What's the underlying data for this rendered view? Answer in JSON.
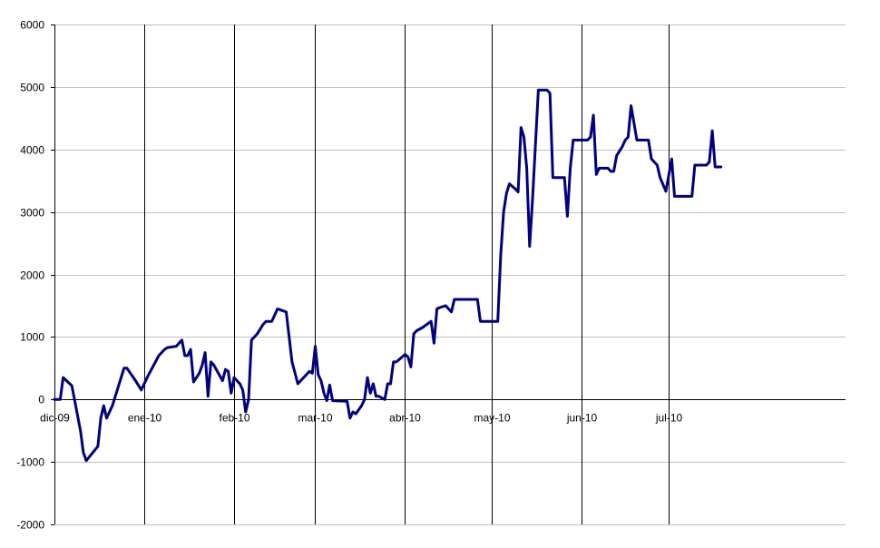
{
  "chart_data": {
    "type": "line",
    "title": "",
    "xlabel": "",
    "ylabel": "",
    "ylim": [
      -2000,
      6000
    ],
    "yticks": [
      -2000,
      -1000,
      0,
      1000,
      2000,
      3000,
      4000,
      5000,
      6000
    ],
    "ytick_labels": [
      "-2000",
      "-1000",
      "0",
      "1000",
      "2000",
      "3000",
      "4000",
      "5000",
      "6000"
    ],
    "x_type": "date",
    "xlim": [
      "2009-12-01",
      "2010-08-31"
    ],
    "xticks": [
      "2009-12-01",
      "2010-01-01",
      "2010-02-01",
      "2010-03-01",
      "2010-04-01",
      "2010-05-01",
      "2010-06-01",
      "2010-07-01"
    ],
    "xtick_labels": [
      "dic-09",
      "ene-10",
      "feb-10",
      "mar-10",
      "abr-10",
      "may-10",
      "jun-10",
      "jul-10"
    ],
    "grid": {
      "horizontal": true,
      "vertical": true
    },
    "colors": {
      "series": "#000080",
      "hgrid": "#c0c0c0",
      "vgrid": "#000000",
      "axis": "#000000"
    },
    "series": [
      {
        "color": "#000080",
        "points": [
          [
            "2009-12-01",
            0
          ],
          [
            "2009-12-03",
            0
          ],
          [
            "2009-12-04",
            350
          ],
          [
            "2009-12-07",
            220
          ],
          [
            "2009-12-10",
            -500
          ],
          [
            "2009-12-11",
            -850
          ],
          [
            "2009-12-12",
            -980
          ],
          [
            "2009-12-16",
            -750
          ],
          [
            "2009-12-17",
            -300
          ],
          [
            "2009-12-18",
            -100
          ],
          [
            "2009-12-19",
            -300
          ],
          [
            "2009-12-21",
            -100
          ],
          [
            "2009-12-23",
            200
          ],
          [
            "2009-12-25",
            500
          ],
          [
            "2009-12-26",
            500
          ],
          [
            "2009-12-29",
            300
          ],
          [
            "2009-12-31",
            150
          ],
          [
            "2010-01-02",
            350
          ],
          [
            "2010-01-06",
            700
          ],
          [
            "2010-01-08",
            800
          ],
          [
            "2010-01-09",
            830
          ],
          [
            "2010-01-12",
            850
          ],
          [
            "2010-01-14",
            950
          ],
          [
            "2010-01-15",
            700
          ],
          [
            "2010-01-16",
            700
          ],
          [
            "2010-01-17",
            800
          ],
          [
            "2010-01-18",
            280
          ],
          [
            "2010-01-20",
            420
          ],
          [
            "2010-01-21",
            550
          ],
          [
            "2010-01-22",
            750
          ],
          [
            "2010-01-23",
            50
          ],
          [
            "2010-01-24",
            600
          ],
          [
            "2010-01-25",
            550
          ],
          [
            "2010-01-28",
            300
          ],
          [
            "2010-01-29",
            480
          ],
          [
            "2010-01-30",
            450
          ],
          [
            "2010-01-31",
            100
          ],
          [
            "2010-02-01",
            350
          ],
          [
            "2010-02-03",
            250
          ],
          [
            "2010-02-04",
            150
          ],
          [
            "2010-02-05",
            -200
          ],
          [
            "2010-02-06",
            0
          ],
          [
            "2010-02-07",
            950
          ],
          [
            "2010-02-08",
            1000
          ],
          [
            "2010-02-09",
            1050
          ],
          [
            "2010-02-11",
            1200
          ],
          [
            "2010-02-12",
            1250
          ],
          [
            "2010-02-14",
            1250
          ],
          [
            "2010-02-16",
            1450
          ],
          [
            "2010-02-19",
            1400
          ],
          [
            "2010-02-21",
            600
          ],
          [
            "2010-02-23",
            250
          ],
          [
            "2010-02-25",
            350
          ],
          [
            "2010-02-27",
            450
          ],
          [
            "2010-02-28",
            420
          ],
          [
            "2010-03-01",
            850
          ],
          [
            "2010-03-02",
            400
          ],
          [
            "2010-03-03",
            300
          ],
          [
            "2010-03-04",
            100
          ],
          [
            "2010-03-05",
            -20
          ],
          [
            "2010-03-06",
            230
          ],
          [
            "2010-03-07",
            -20
          ],
          [
            "2010-03-12",
            -30
          ],
          [
            "2010-03-13",
            -300
          ],
          [
            "2010-03-14",
            -200
          ],
          [
            "2010-03-15",
            -230
          ],
          [
            "2010-03-17",
            -100
          ],
          [
            "2010-03-18",
            0
          ],
          [
            "2010-03-19",
            350
          ],
          [
            "2010-03-20",
            100
          ],
          [
            "2010-03-21",
            250
          ],
          [
            "2010-03-22",
            50
          ],
          [
            "2010-03-23",
            50
          ],
          [
            "2010-03-25",
            0
          ],
          [
            "2010-03-26",
            250
          ],
          [
            "2010-03-27",
            250
          ],
          [
            "2010-03-28",
            600
          ],
          [
            "2010-03-29",
            600
          ],
          [
            "2010-04-01",
            720
          ],
          [
            "2010-04-02",
            680
          ],
          [
            "2010-04-03",
            520
          ],
          [
            "2010-04-04",
            1050
          ],
          [
            "2010-04-05",
            1100
          ],
          [
            "2010-04-07",
            1150
          ],
          [
            "2010-04-10",
            1250
          ],
          [
            "2010-04-11",
            900
          ],
          [
            "2010-04-12",
            1450
          ],
          [
            "2010-04-13",
            1470
          ],
          [
            "2010-04-15",
            1500
          ],
          [
            "2010-04-17",
            1400
          ],
          [
            "2010-04-18",
            1600
          ],
          [
            "2010-04-26",
            1600
          ],
          [
            "2010-04-27",
            1250
          ],
          [
            "2010-05-03",
            1250
          ],
          [
            "2010-05-04",
            2300
          ],
          [
            "2010-05-05",
            3000
          ],
          [
            "2010-05-06",
            3300
          ],
          [
            "2010-05-07",
            3450
          ],
          [
            "2010-05-09",
            3370
          ],
          [
            "2010-05-10",
            3320
          ],
          [
            "2010-05-11",
            4350
          ],
          [
            "2010-05-12",
            4200
          ],
          [
            "2010-05-13",
            3700
          ],
          [
            "2010-05-14",
            2450
          ],
          [
            "2010-05-15",
            3200
          ],
          [
            "2010-05-17",
            4950
          ],
          [
            "2010-05-20",
            4950
          ],
          [
            "2010-05-21",
            4900
          ],
          [
            "2010-05-22",
            3550
          ],
          [
            "2010-05-26",
            3550
          ],
          [
            "2010-05-27",
            2930
          ],
          [
            "2010-05-28",
            3700
          ],
          [
            "2010-05-29",
            4150
          ],
          [
            "2010-06-03",
            4150
          ],
          [
            "2010-06-04",
            4200
          ],
          [
            "2010-06-05",
            4550
          ],
          [
            "2010-06-06",
            3600
          ],
          [
            "2010-06-07",
            3700
          ],
          [
            "2010-06-10",
            3700
          ],
          [
            "2010-06-11",
            3650
          ],
          [
            "2010-06-12",
            3650
          ],
          [
            "2010-06-13",
            3900
          ],
          [
            "2010-06-15",
            4050
          ],
          [
            "2010-06-16",
            4150
          ],
          [
            "2010-06-17",
            4200
          ],
          [
            "2010-06-18",
            4700
          ],
          [
            "2010-06-20",
            4150
          ],
          [
            "2010-06-24",
            4150
          ],
          [
            "2010-06-25",
            3850
          ],
          [
            "2010-06-27",
            3750
          ],
          [
            "2010-06-28",
            3550
          ],
          [
            "2010-06-30",
            3330
          ],
          [
            "2010-07-02",
            3850
          ],
          [
            "2010-07-03",
            3250
          ],
          [
            "2010-07-08",
            3250
          ],
          [
            "2010-07-09",
            3250
          ],
          [
            "2010-07-10",
            3750
          ],
          [
            "2010-07-14",
            3750
          ],
          [
            "2010-07-15",
            3800
          ],
          [
            "2010-07-16",
            4300
          ],
          [
            "2010-07-17",
            3720
          ],
          [
            "2010-07-19",
            3720
          ]
        ]
      }
    ]
  }
}
